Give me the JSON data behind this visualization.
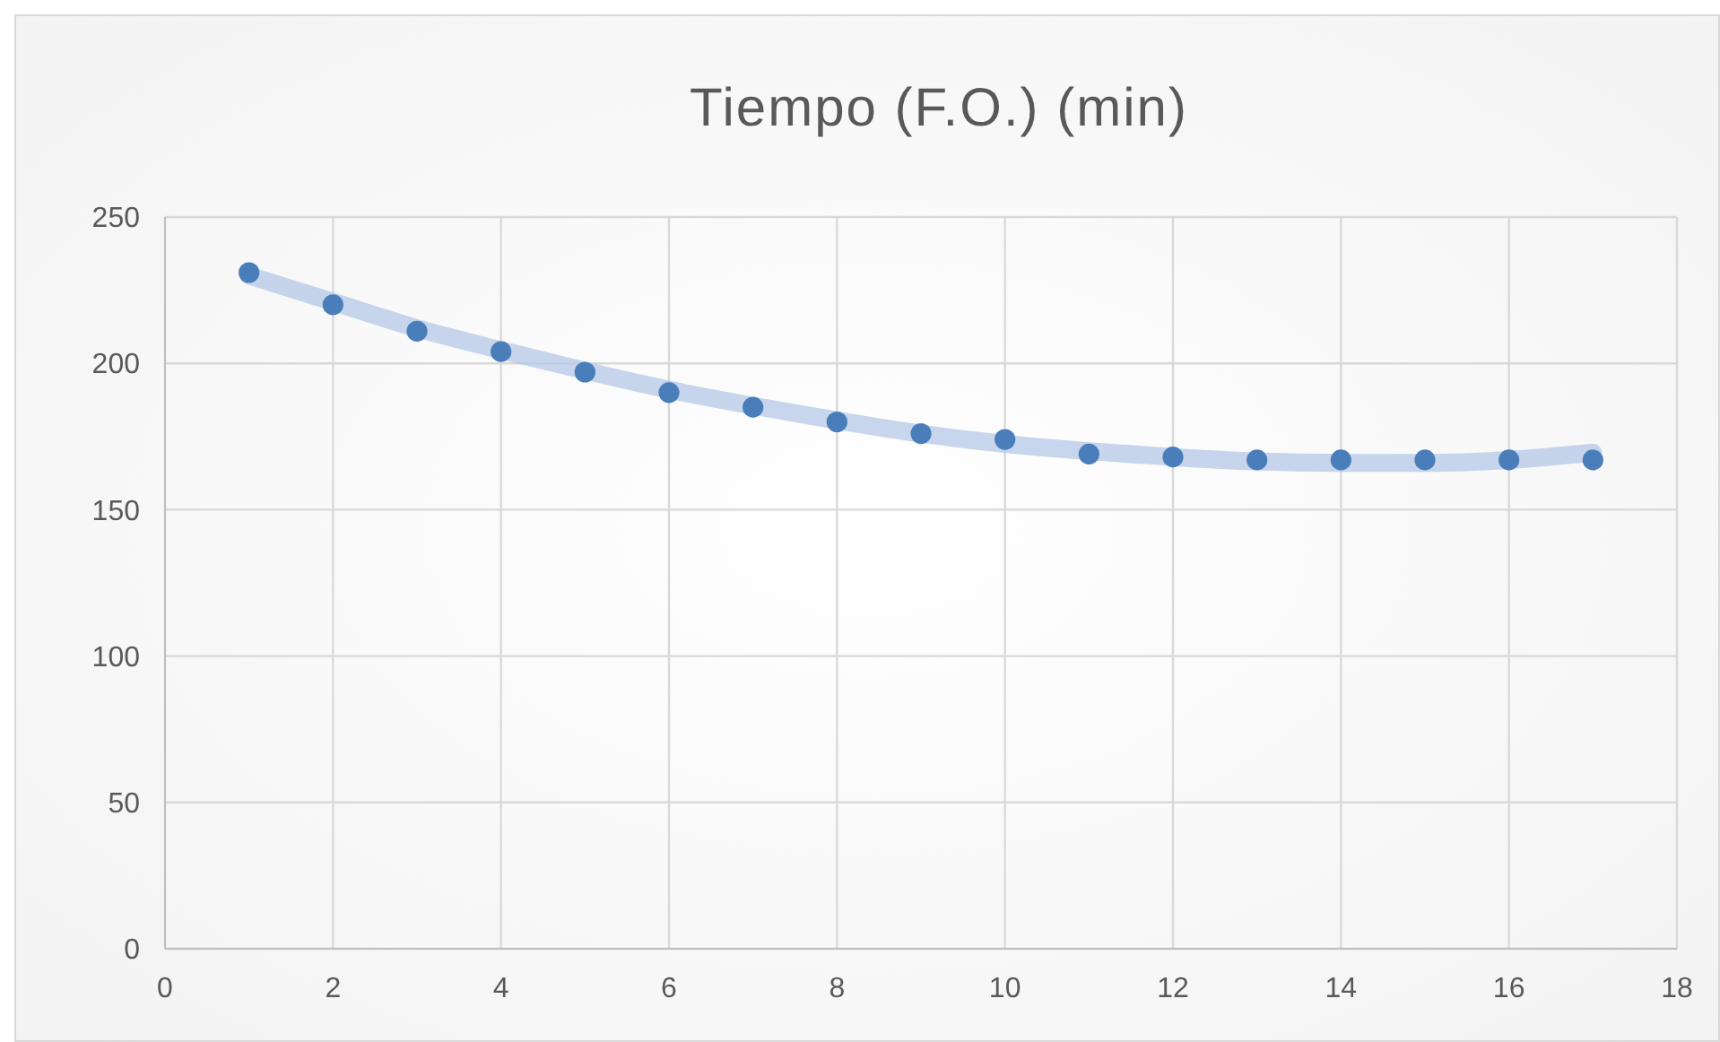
{
  "chart_data": {
    "type": "scatter",
    "title": "Tiempo (F.O.) (min)",
    "x": [
      1,
      2,
      3,
      4,
      5,
      6,
      7,
      8,
      9,
      10,
      11,
      12,
      13,
      14,
      15,
      16,
      17
    ],
    "series": [
      {
        "type": "line",
        "marker": "none",
        "color": "#b4c7e7",
        "values": [
          230,
          221,
          212,
          204.5,
          197.5,
          191,
          185.5,
          180.5,
          176,
          172.5,
          170,
          168,
          166.5,
          166,
          166,
          167,
          169.5
        ]
      },
      {
        "color": "#4a7ebb",
        "values": [
          231,
          220,
          211,
          204,
          197,
          190,
          185,
          180,
          176,
          174,
          169,
          168,
          167,
          167,
          167,
          167,
          167
        ]
      }
    ],
    "xlim": [
      0,
      18
    ],
    "xticks": [
      0,
      2,
      4,
      6,
      8,
      10,
      12,
      14,
      16,
      18
    ],
    "ylim": [
      0,
      250
    ],
    "yticks": [
      0,
      50,
      100,
      150,
      200,
      250
    ],
    "grid": true,
    "marker": "circle"
  }
}
